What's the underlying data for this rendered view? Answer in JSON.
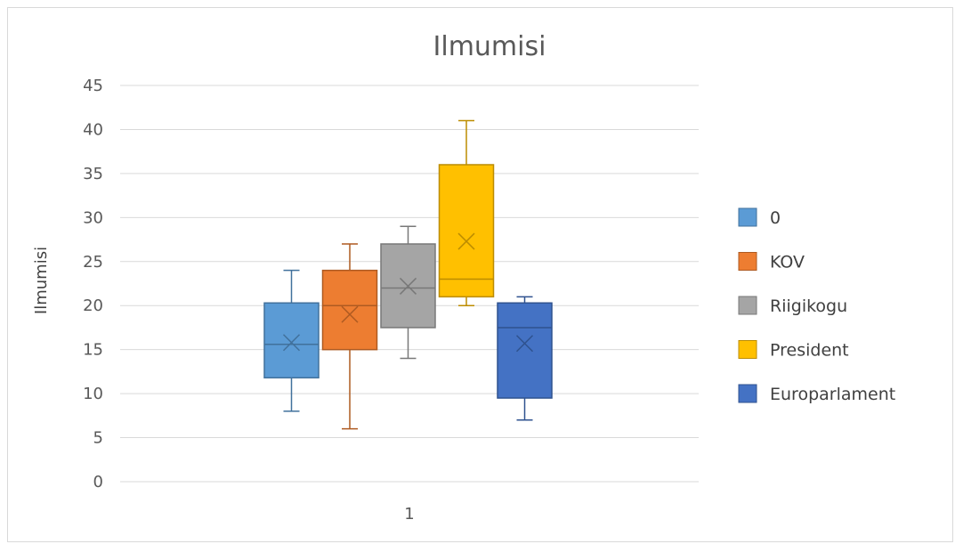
{
  "chart_data": {
    "type": "boxplot",
    "title": "Ilmumisi",
    "ylabel": "Ilmumisi",
    "xlabel": "",
    "categories": [
      "1"
    ],
    "ylim": [
      0,
      45
    ],
    "ytick_step": 5,
    "grid": true,
    "legend_position": "right",
    "series": [
      {
        "name": "0",
        "color": "#5b9bd5",
        "stroke": "#41719c",
        "min": 8,
        "q1": 11.8,
        "median": 15.6,
        "q3": 20.3,
        "max": 24,
        "mean": 15.8
      },
      {
        "name": "KOV",
        "color": "#ed7d31",
        "stroke": "#ae5a21",
        "min": 6,
        "q1": 15,
        "median": 20,
        "q3": 24,
        "max": 27,
        "mean": 19
      },
      {
        "name": "Riigikogu",
        "color": "#a5a5a5",
        "stroke": "#787878",
        "min": 14,
        "q1": 17.5,
        "median": 22,
        "q3": 27,
        "max": 29,
        "mean": 22.2
      },
      {
        "name": "President",
        "color": "#ffc000",
        "stroke": "#bc8c00",
        "min": 20,
        "q1": 21,
        "median": 23,
        "q3": 36,
        "max": 41,
        "mean": 27.3
      },
      {
        "name": "Europarlament",
        "color": "#4472c4",
        "stroke": "#2f528f",
        "min": 7,
        "q1": 9.5,
        "median": 17.5,
        "q3": 20.3,
        "max": 21,
        "mean": 15.7
      }
    ]
  }
}
